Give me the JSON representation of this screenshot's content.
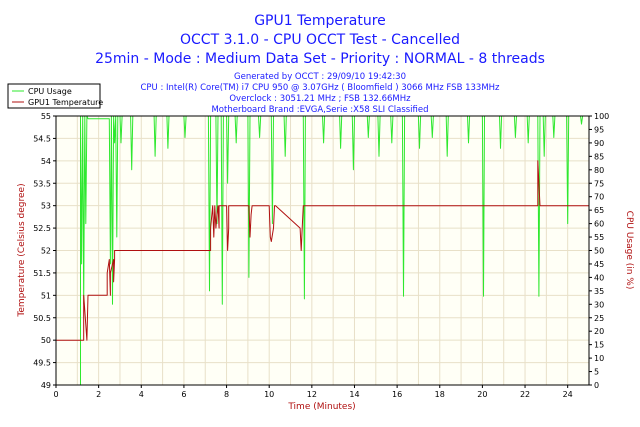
{
  "chart_data": {
    "type": "line",
    "title_lines": [
      "GPU1 Temperature",
      "OCCT 3.1.0 - CPU OCCT Test - Cancelled",
      "25min - Mode : Medium Data Set - Priority : NORMAL - 8 threads"
    ],
    "info_lines": [
      "Generated by OCCT : 29/09/10 19:42:30",
      "CPU : Intel(R) Core(TM) i7 CPU 950 @ 3.07GHz ( Bloomfield ) 3066 MHz FSB 133MHz",
      "Overclock : 3051.21 MHz ; FSB 132.66MHz",
      "Motherboard Brand :EVGA,Serie :X58 SLI Classified"
    ],
    "xlabel": "Time (Minutes)",
    "ylabel": "Temperature (Celsius degree)",
    "y2label": "CPU Usage (in %)",
    "xlim": [
      0,
      25
    ],
    "ylim": [
      49,
      55
    ],
    "y2lim": [
      0,
      100
    ],
    "x_ticks": [
      "0",
      "2",
      "4",
      "6",
      "8",
      "10",
      "12",
      "14",
      "16",
      "18",
      "20",
      "22",
      "24"
    ],
    "y_ticks": [
      "49",
      "49.5",
      "50",
      "50.5",
      "51",
      "51.5",
      "52",
      "52.5",
      "53",
      "53.5",
      "54",
      "54.5",
      "55"
    ],
    "y2_ticks": [
      "0",
      "5",
      "10",
      "15",
      "20",
      "25",
      "30",
      "35",
      "40",
      "45",
      "50",
      "55",
      "60",
      "65",
      "70",
      "75",
      "80",
      "85",
      "90",
      "95",
      "100"
    ],
    "grid": true,
    "legend_position": "top-left",
    "colors": {
      "cpu_usage": "#2ee82e",
      "gpu_temp": "#b01010",
      "title": "#1a1aff",
      "axis_label": "#b01010",
      "grid": "#e8e0c8",
      "plot_bg": "#fffff6"
    },
    "series": [
      {
        "name": "CPU Usage",
        "axis": "right",
        "x": [
          0,
          1.15,
          1.15,
          1.2,
          1.25,
          1.3,
          1.35,
          1.4,
          1.45,
          1.5,
          2.5,
          2.55,
          2.6,
          2.65,
          2.7,
          2.75,
          2.8,
          2.85,
          2.9,
          3.0,
          3.05,
          3.1,
          3.5,
          3.55,
          3.6,
          3.65,
          4.6,
          4.65,
          4.7,
          5.2,
          5.25,
          5.3,
          6.0,
          6.05,
          6.1,
          7.15,
          7.2,
          7.25,
          7.5,
          7.55,
          7.6,
          7.75,
          7.8,
          7.85,
          8.0,
          8.05,
          8.1,
          8.4,
          8.45,
          8.5,
          9.0,
          9.05,
          9.1,
          9.5,
          9.55,
          9.6,
          10.1,
          10.15,
          10.2,
          10.7,
          10.75,
          10.8,
          11.6,
          11.65,
          11.7,
          12.5,
          12.55,
          12.6,
          13.3,
          13.35,
          13.4,
          13.9,
          13.95,
          14.0,
          14.6,
          14.65,
          14.7,
          15.1,
          15.15,
          15.2,
          15.7,
          15.75,
          15.8,
          16.25,
          16.3,
          16.35,
          17.0,
          17.05,
          17.1,
          17.6,
          17.65,
          17.7,
          18.3,
          18.35,
          18.4,
          19.3,
          19.35,
          19.4,
          20.0,
          20.05,
          20.1,
          20.8,
          20.85,
          20.9,
          21.5,
          21.55,
          21.6,
          22.1,
          22.15,
          22.2,
          22.6,
          22.65,
          22.7,
          22.85,
          22.9,
          22.95,
          23.3,
          23.35,
          23.4,
          23.95,
          24.0,
          24.05,
          24.6,
          24.65,
          24.7,
          25
        ],
        "values": [
          0,
          0,
          100,
          45,
          100,
          30,
          100,
          60,
          100,
          99,
          99,
          45,
          100,
          30,
          100,
          90,
          100,
          55,
          100,
          100,
          90,
          100,
          100,
          80,
          100,
          100,
          100,
          85,
          100,
          100,
          88,
          100,
          100,
          92,
          100,
          100,
          35,
          100,
          100,
          60,
          100,
          100,
          30,
          100,
          100,
          75,
          100,
          100,
          90,
          100,
          100,
          40,
          100,
          100,
          92,
          100,
          100,
          60,
          100,
          100,
          85,
          100,
          100,
          32,
          100,
          100,
          90,
          100,
          100,
          88,
          100,
          100,
          80,
          100,
          100,
          92,
          100,
          100,
          85,
          100,
          100,
          90,
          100,
          100,
          33,
          100,
          100,
          88,
          100,
          100,
          92,
          100,
          100,
          85,
          100,
          100,
          90,
          100,
          100,
          33,
          100,
          100,
          88,
          100,
          100,
          92,
          100,
          100,
          90,
          100,
          100,
          33,
          100,
          100,
          85,
          100,
          100,
          92,
          100,
          100,
          60,
          100,
          100,
          97,
          100,
          100
        ]
      },
      {
        "name": "GPU1 Temperature",
        "axis": "left",
        "x": [
          0,
          1.3,
          1.3,
          1.45,
          1.5,
          1.5,
          2.4,
          2.4,
          2.5,
          2.55,
          2.55,
          2.7,
          2.7,
          2.75,
          2.75,
          7.25,
          7.25,
          7.35,
          7.4,
          7.45,
          7.5,
          7.55,
          7.6,
          7.65,
          7.65,
          8.0,
          8.05,
          8.1,
          8.1,
          9.05,
          9.1,
          9.15,
          9.2,
          9.25,
          10.0,
          10.05,
          10.1,
          10.2,
          10.25,
          10.3,
          11.45,
          11.5,
          11.55,
          11.6,
          11.65,
          22.6,
          22.6,
          22.65,
          22.7,
          25
        ],
        "values": [
          50,
          50,
          51,
          50,
          51,
          51,
          51,
          51.5,
          51.8,
          51,
          51.5,
          51.8,
          51.3,
          51.8,
          52,
          52,
          52.5,
          53,
          52.3,
          53,
          52.5,
          52.8,
          53,
          52.5,
          53,
          53,
          52,
          52.5,
          53,
          53,
          52.3,
          52.8,
          53,
          53,
          53,
          52.3,
          52.2,
          52.5,
          53,
          53,
          52.5,
          52,
          52.5,
          53,
          53,
          53,
          54,
          53.5,
          53,
          53
        ]
      }
    ]
  }
}
